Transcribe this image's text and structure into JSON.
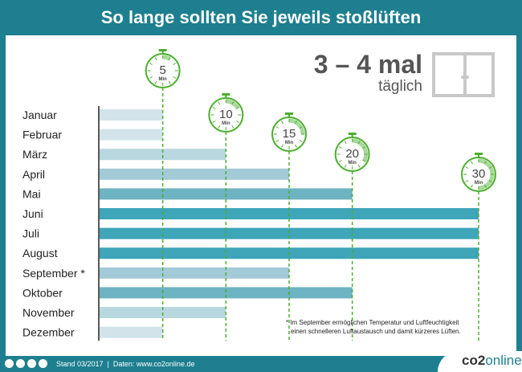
{
  "title": "So lange sollten Sie jeweils stoßlüften",
  "frequency": {
    "main": "3 – 4 mal",
    "sub": "täglich"
  },
  "note": [
    "* Im September ermöglichen Temperatur und Luftfeuchtigkeit",
    "einen schnelleren Luftaustausch und damit kürzeres Lüften."
  ],
  "footer": {
    "stand": "Stand 03/2017  |  Daten: www.co2online.de",
    "logo_a": "co2",
    "logo_b": "online",
    "icons": [
      "cc-icon",
      "by-icon",
      "nc-icon",
      "nd-icon"
    ]
  },
  "timer_unit": "Min",
  "colors": {
    "5": "#d2e4ea",
    "10": "#b8d7df",
    "15": "#a2cad7",
    "20": "#6db3c2",
    "30": "#3fa5b8",
    "timer": "#4caf2e"
  },
  "chart_data": {
    "type": "bar",
    "orientation": "horizontal",
    "categories": [
      "Januar",
      "Februar",
      "März",
      "April",
      "Mai",
      "Juni",
      "Juli",
      "August",
      "September *",
      "Oktober",
      "November",
      "Dezember"
    ],
    "values": [
      5,
      5,
      10,
      15,
      20,
      30,
      30,
      30,
      15,
      20,
      10,
      5
    ],
    "unit": "Min",
    "markers": [
      5,
      10,
      15,
      20,
      30
    ],
    "xlim": [
      0,
      30
    ]
  }
}
